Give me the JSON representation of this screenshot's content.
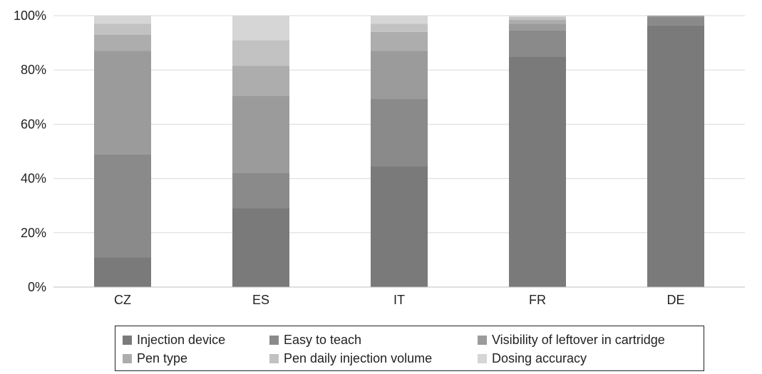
{
  "chart_data": {
    "type": "bar",
    "stacked": true,
    "categories": [
      "CZ",
      "ES",
      "IT",
      "FR",
      "DE"
    ],
    "series": [
      {
        "name": "Injection device",
        "color": "#7a7a7a",
        "values": [
          11,
          29,
          44.5,
          85,
          96.5
        ]
      },
      {
        "name": "Easy to teach",
        "color": "#8a8a8a",
        "values": [
          38,
          13,
          25,
          9.5,
          3
        ]
      },
      {
        "name": "Visibility of leftover in cartridge",
        "color": "#9b9b9b",
        "values": [
          38,
          28.5,
          17.5,
          2.5,
          0.5
        ]
      },
      {
        "name": "Pen type",
        "color": "#adadad",
        "values": [
          6,
          11,
          7,
          1.5,
          0
        ]
      },
      {
        "name": "Pen daily injection volume",
        "color": "#c2c2c2",
        "values": [
          4,
          9.5,
          3,
          1,
          0
        ]
      },
      {
        "name": "Dosing accuracy",
        "color": "#d6d6d6",
        "values": [
          3,
          9,
          3,
          0.5,
          0
        ]
      }
    ],
    "y_ticks": [
      "0%",
      "20%",
      "40%",
      "60%",
      "80%",
      "100%"
    ],
    "ylim": [
      0,
      100
    ],
    "grid": true,
    "legend_position": "bottom",
    "title": "",
    "xlabel": "",
    "ylabel": ""
  }
}
